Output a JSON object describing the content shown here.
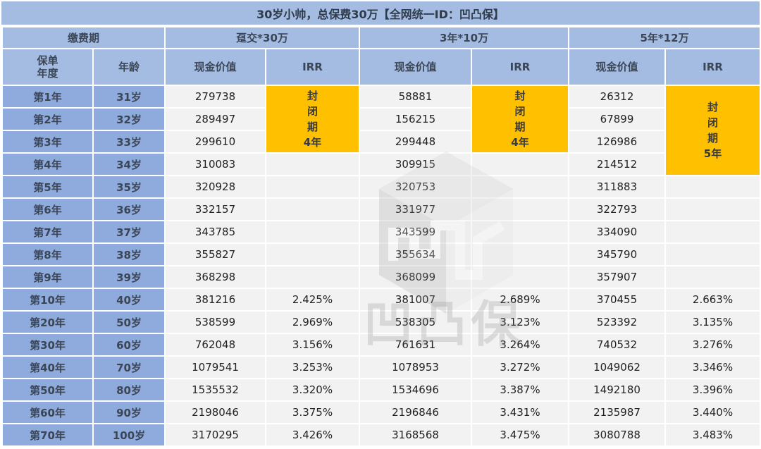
{
  "title": "30岁小帅，总保费30万【全网统一ID：凹凸保】",
  "header": {
    "payment_period_label": "缴费期",
    "policy_year_label": "保单\n年度",
    "policy_year_line1": "保单",
    "policy_year_line2": "年度",
    "age_label": "年龄",
    "plans": [
      {
        "name": "趸交*30万",
        "cash_value_label": "现金价值",
        "irr_label": "IRR"
      },
      {
        "name": "3年*10万",
        "cash_value_label": "现金价值",
        "irr_label": "IRR"
      },
      {
        "name": "5年*12万",
        "cash_value_label": "现金价值",
        "irr_label": "IRR"
      }
    ]
  },
  "closed_periods": [
    {
      "lines": [
        "封",
        "闭",
        "期",
        "4年"
      ],
      "rows": 3
    },
    {
      "lines": [
        "封",
        "闭",
        "期",
        "4年"
      ],
      "rows": 3
    },
    {
      "lines": [
        "封",
        "闭",
        "期",
        "5年"
      ],
      "rows": 4
    }
  ],
  "rows": [
    {
      "year": "第1年",
      "age": "31岁",
      "cv": [
        "279738",
        "58881",
        "26312"
      ],
      "irr": [
        "",
        "",
        ""
      ]
    },
    {
      "year": "第2年",
      "age": "32岁",
      "cv": [
        "289497",
        "156215",
        "67899"
      ],
      "irr": [
        "",
        "",
        ""
      ]
    },
    {
      "year": "第3年",
      "age": "33岁",
      "cv": [
        "299610",
        "299448",
        "126986"
      ],
      "irr": [
        "",
        "",
        ""
      ]
    },
    {
      "year": "第4年",
      "age": "34岁",
      "cv": [
        "310083",
        "309915",
        "214512"
      ],
      "irr": [
        "",
        "",
        ""
      ]
    },
    {
      "year": "第5年",
      "age": "35岁",
      "cv": [
        "320928",
        "320753",
        "311883"
      ],
      "irr": [
        "",
        "",
        ""
      ]
    },
    {
      "year": "第6年",
      "age": "36岁",
      "cv": [
        "332157",
        "331977",
        "322793"
      ],
      "irr": [
        "",
        "",
        ""
      ]
    },
    {
      "year": "第7年",
      "age": "37岁",
      "cv": [
        "343785",
        "343599",
        "334090"
      ],
      "irr": [
        "",
        "",
        ""
      ]
    },
    {
      "year": "第8年",
      "age": "38岁",
      "cv": [
        "355827",
        "355634",
        "345790"
      ],
      "irr": [
        "",
        "",
        ""
      ]
    },
    {
      "year": "第9年",
      "age": "39岁",
      "cv": [
        "368298",
        "368099",
        "357907"
      ],
      "irr": [
        "",
        "",
        ""
      ]
    },
    {
      "year": "第10年",
      "age": "40岁",
      "cv": [
        "381216",
        "381007",
        "370455"
      ],
      "irr": [
        "2.425%",
        "2.689%",
        "2.663%"
      ]
    },
    {
      "year": "第20年",
      "age": "50岁",
      "cv": [
        "538599",
        "538305",
        "523392"
      ],
      "irr": [
        "2.969%",
        "3.123%",
        "3.135%"
      ]
    },
    {
      "year": "第30年",
      "age": "60岁",
      "cv": [
        "762048",
        "761631",
        "740532"
      ],
      "irr": [
        "3.156%",
        "3.264%",
        "3.276%"
      ]
    },
    {
      "year": "第40年",
      "age": "70岁",
      "cv": [
        "1079541",
        "1078953",
        "1049062"
      ],
      "irr": [
        "3.253%",
        "3.272%",
        "3.346%"
      ]
    },
    {
      "year": "第50年",
      "age": "80岁",
      "cv": [
        "1535532",
        "1534696",
        "1492180"
      ],
      "irr": [
        "3.320%",
        "3.387%",
        "3.396%"
      ]
    },
    {
      "year": "第60年",
      "age": "90岁",
      "cv": [
        "2198046",
        "2196846",
        "2135987"
      ],
      "irr": [
        "3.375%",
        "3.431%",
        "3.440%"
      ]
    },
    {
      "year": "第70年",
      "age": "100岁",
      "cv": [
        "3170295",
        "3168568",
        "3080788"
      ],
      "irr": [
        "3.426%",
        "3.475%",
        "3.483%"
      ]
    }
  ],
  "watermark": {
    "text": "凹凸保",
    "icon": "cube-logo-icon"
  },
  "colors": {
    "header_bg": "#a4bbe2",
    "row_header_bg": "#8faadc",
    "cell_bg": "#f2f2f2",
    "closed_period_bg": "#ffc000"
  }
}
